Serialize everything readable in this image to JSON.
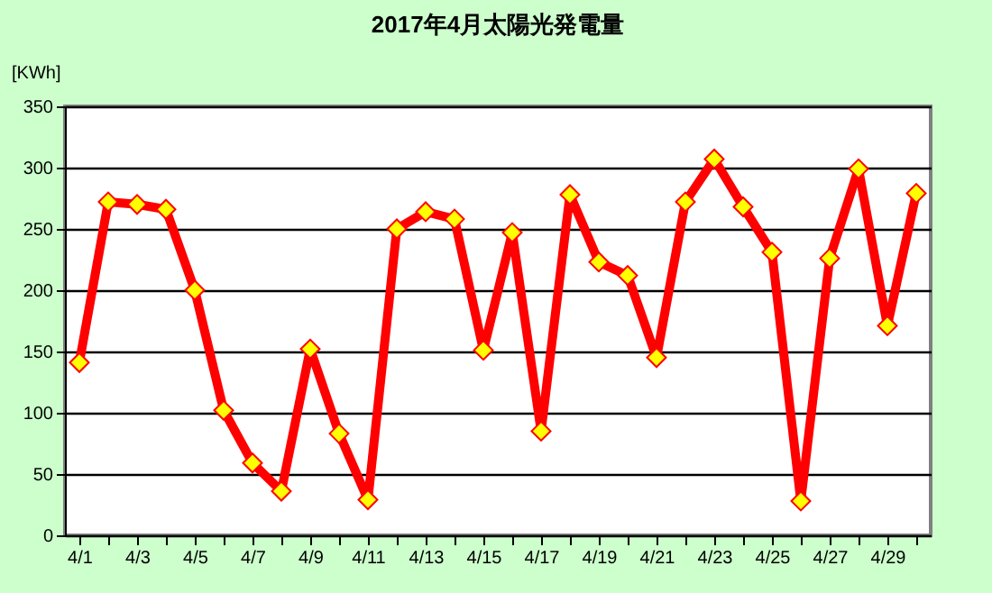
{
  "chart_data": {
    "type": "line",
    "title": "2017年4月太陽光発電量",
    "ylabel": "[KWh]",
    "categories": [
      "4/1",
      null,
      "4/3",
      null,
      "4/5",
      null,
      "4/7",
      null,
      "4/9",
      null,
      "4/11",
      null,
      "4/13",
      null,
      "4/15",
      null,
      "4/17",
      null,
      "4/19",
      null,
      "4/21",
      null,
      "4/23",
      null,
      "4/25",
      null,
      "4/27",
      null,
      "4/29",
      null
    ],
    "series": [
      {
        "color": "#ff0000",
        "values": [
          141,
          272,
          270,
          266,
          200,
          102,
          59,
          36,
          152,
          83,
          29,
          250,
          264,
          258,
          151,
          247,
          85,
          278,
          223,
          212,
          145,
          272,
          307,
          268,
          231,
          28,
          226,
          299,
          171,
          279
        ]
      }
    ],
    "ylim": [
      0,
      350
    ],
    "yticks": [
      0,
      50,
      100,
      150,
      200,
      250,
      300,
      350
    ],
    "grid": "y",
    "marker": "diamond",
    "line_style": "solid"
  }
}
